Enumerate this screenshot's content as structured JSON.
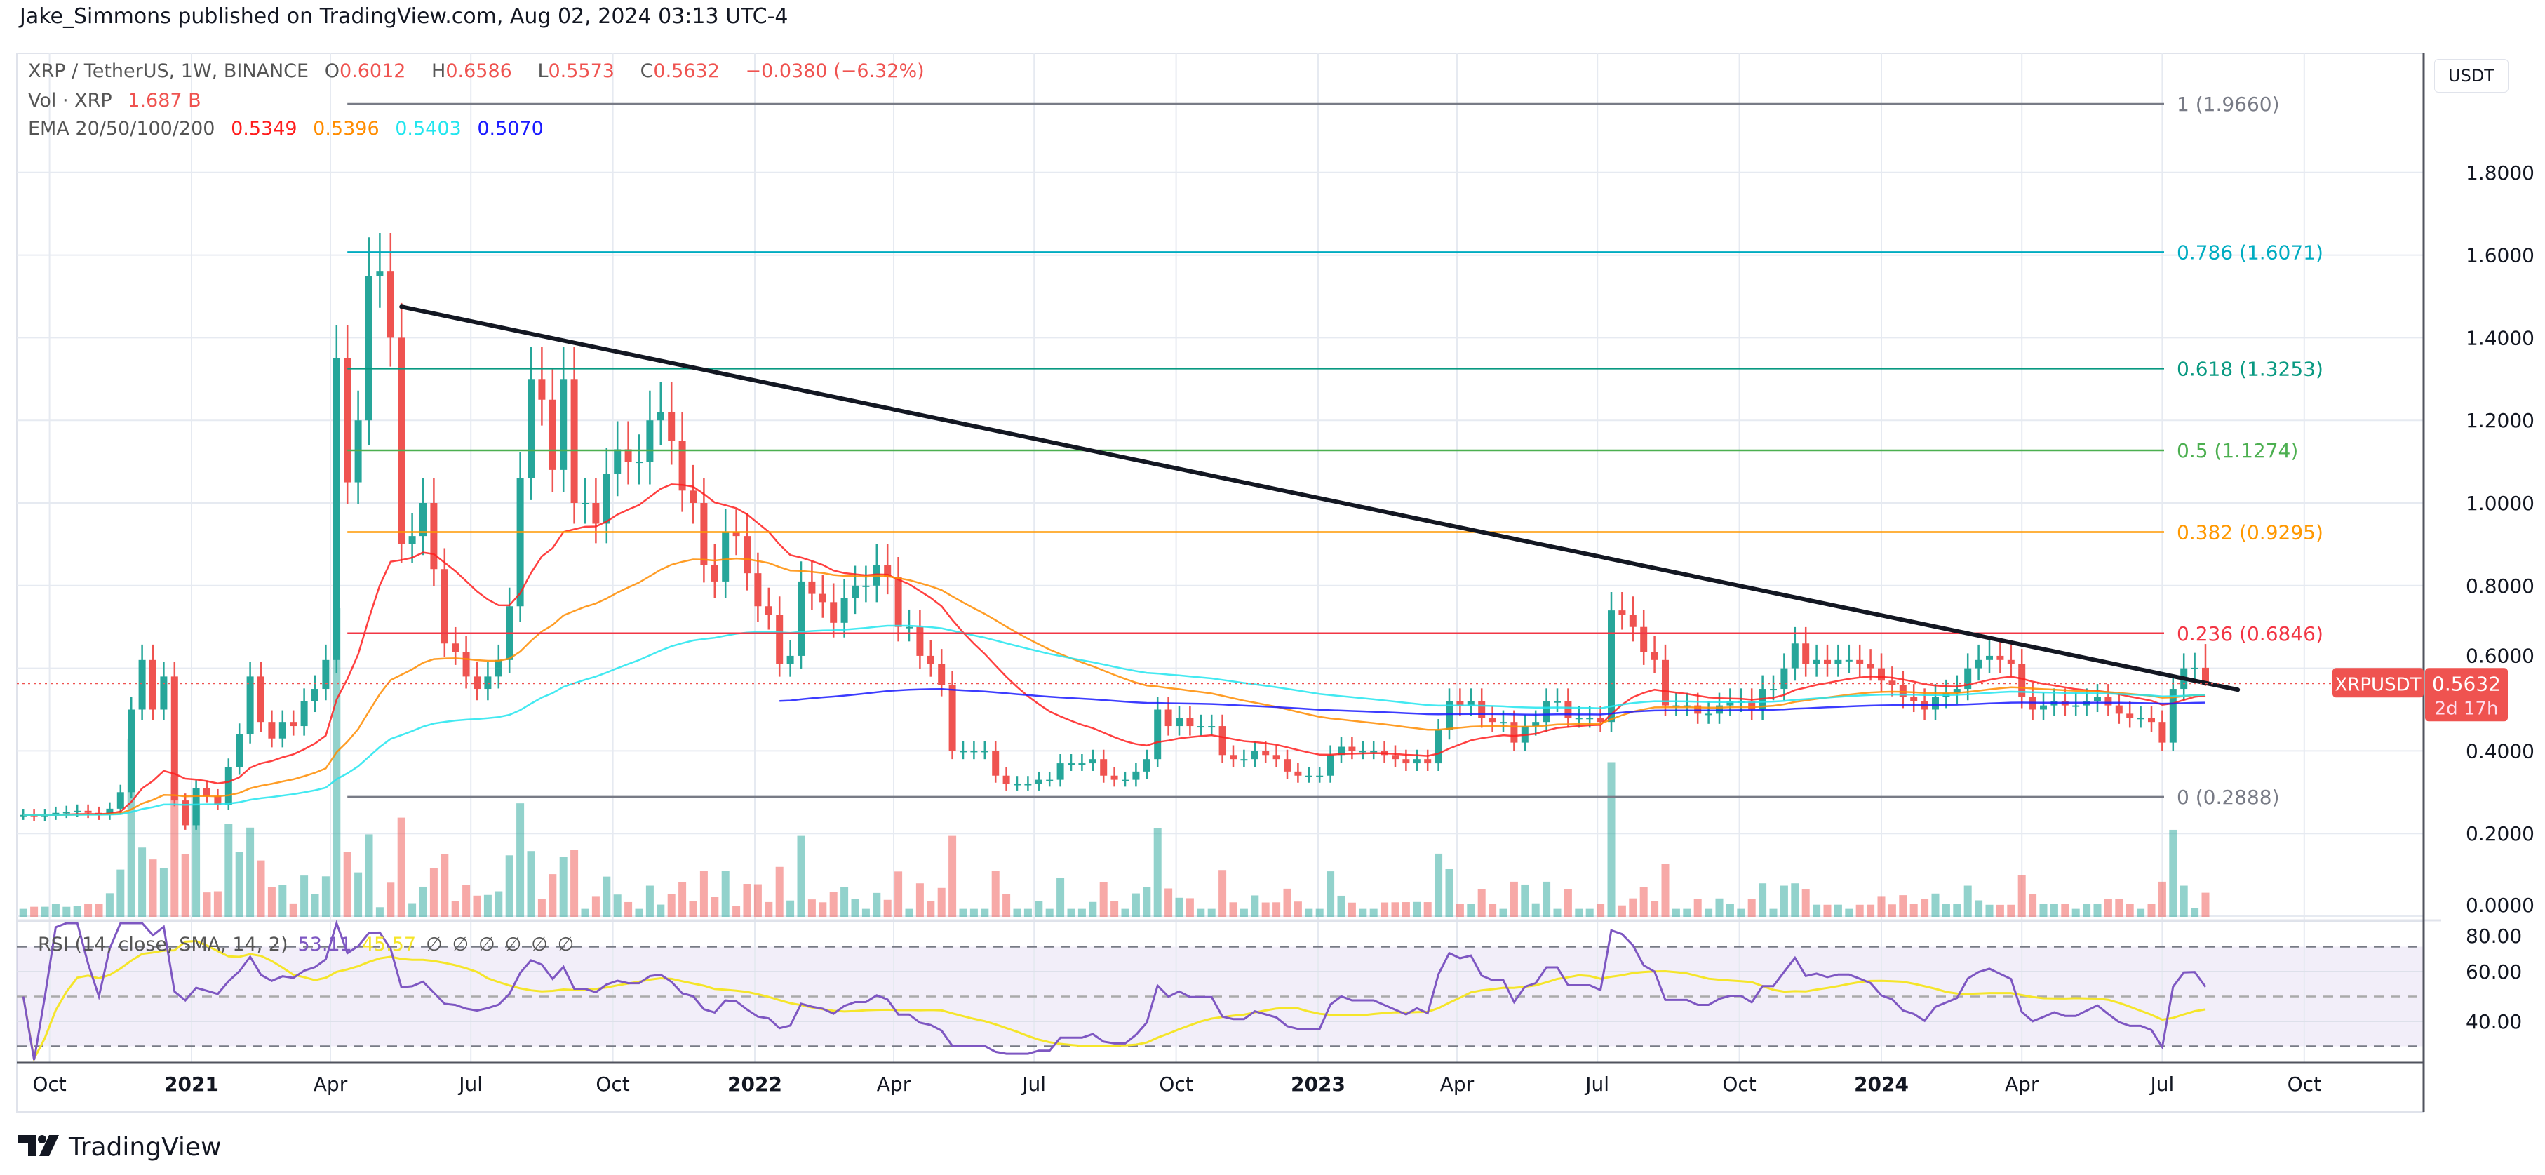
{
  "header": {
    "publisher_line": "Jake_Simmons published on TradingView.com, Aug 02, 2024 03:13 UTC-4"
  },
  "legend": {
    "symbol": "XRP / TetherUS, 1W, BINANCE",
    "open_label": "O",
    "open": "0.6012",
    "high_label": "H",
    "high": "0.6586",
    "low_label": "L",
    "low": "0.5573",
    "close_label": "C",
    "close": "0.5632",
    "change": "−0.0380 (−6.32%)",
    "volume_label": "Vol · XRP",
    "volume": "1.687 B",
    "ema_label": "EMA 20/50/100/200",
    "ema_values": [
      "0.5349",
      "0.5396",
      "0.5403",
      "0.5070"
    ],
    "ema_colors": [
      "#ff1e1e",
      "#ff8c00",
      "#22e5ee",
      "#1a1aff"
    ]
  },
  "price_axis": {
    "currency": "USDT",
    "ticks": [
      "0.0000",
      "0.2000",
      "0.4000",
      "0.6000",
      "0.8000",
      "1.0000",
      "1.2000",
      "1.4000",
      "1.6000",
      "1.8000"
    ],
    "last_price_symbol": "XRPUSDT",
    "last_price": "0.5632",
    "countdown": "2d 17h"
  },
  "rsi": {
    "label": "RSI (14, close, SMA, 14, 2)",
    "value": "53.11",
    "sma_value": "45.57",
    "empty_values": [
      "∅",
      "∅",
      "∅",
      "∅",
      "∅",
      "∅"
    ],
    "ticks": [
      "40.00",
      "60.00",
      "80.00"
    ],
    "colors": {
      "rsi": "#7e57c2",
      "sma": "#f5e52a"
    }
  },
  "time_axis": [
    {
      "label": "Oct",
      "date": "2020-10-01",
      "year": false
    },
    {
      "label": "2021",
      "date": "2021-01-01",
      "year": true
    },
    {
      "label": "Apr",
      "date": "2021-04-01",
      "year": false
    },
    {
      "label": "Jul",
      "date": "2021-07-01",
      "year": false
    },
    {
      "label": "Oct",
      "date": "2021-10-01",
      "year": false
    },
    {
      "label": "2022",
      "date": "2022-01-01",
      "year": true
    },
    {
      "label": "Apr",
      "date": "2022-04-01",
      "year": false
    },
    {
      "label": "Jul",
      "date": "2022-07-01",
      "year": false
    },
    {
      "label": "Oct",
      "date": "2022-10-01",
      "year": false
    },
    {
      "label": "2023",
      "date": "2023-01-01",
      "year": true
    },
    {
      "label": "Apr",
      "date": "2023-04-01",
      "year": false
    },
    {
      "label": "Jul",
      "date": "2023-07-01",
      "year": false
    },
    {
      "label": "Oct",
      "date": "2023-10-01",
      "year": false
    },
    {
      "label": "2024",
      "date": "2024-01-01",
      "year": true
    },
    {
      "label": "Apr",
      "date": "2024-04-01",
      "year": false
    },
    {
      "label": "Jul",
      "date": "2024-07-01",
      "year": false
    },
    {
      "label": "Oct",
      "date": "2024-10-01",
      "year": false
    }
  ],
  "footer": {
    "brand": "TradingView"
  },
  "chart_data": {
    "type": "candlestick",
    "symbol": "XRPUSDT",
    "interval": "1W",
    "last_candle_date": "2024-07-29",
    "ylim": [
      0,
      2.0
    ],
    "grid": true,
    "colors": {
      "up": "#26a69a",
      "down": "#ef5350"
    },
    "closes": [
      0.245,
      0.243,
      0.245,
      0.25,
      0.252,
      0.255,
      0.25,
      0.245,
      0.26,
      0.3,
      0.5,
      0.62,
      0.5,
      0.58,
      0.28,
      0.22,
      0.31,
      0.29,
      0.27,
      0.36,
      0.44,
      0.58,
      0.47,
      0.43,
      0.47,
      0.46,
      0.52,
      0.55,
      0.62,
      1.35,
      1.05,
      1.2,
      1.55,
      1.56,
      1.4,
      0.9,
      0.92,
      1.0,
      0.84,
      0.66,
      0.64,
      0.58,
      0.55,
      0.58,
      0.62,
      0.75,
      1.06,
      1.3,
      1.25,
      1.08,
      1.3,
      1.0,
      1.0,
      0.95,
      1.07,
      1.13,
      1.1,
      1.1,
      1.2,
      1.22,
      1.15,
      1.03,
      1.0,
      0.85,
      0.81,
      0.93,
      0.92,
      0.83,
      0.75,
      0.73,
      0.61,
      0.63,
      0.81,
      0.78,
      0.76,
      0.71,
      0.77,
      0.8,
      0.8,
      0.85,
      0.82,
      0.7,
      0.7,
      0.63,
      0.61,
      0.56,
      0.4,
      0.4,
      0.4,
      0.4,
      0.34,
      0.32,
      0.32,
      0.32,
      0.33,
      0.33,
      0.37,
      0.37,
      0.37,
      0.38,
      0.34,
      0.33,
      0.33,
      0.35,
      0.38,
      0.5,
      0.46,
      0.48,
      0.46,
      0.46,
      0.46,
      0.39,
      0.38,
      0.38,
      0.4,
      0.39,
      0.38,
      0.35,
      0.34,
      0.34,
      0.34,
      0.39,
      0.41,
      0.4,
      0.4,
      0.4,
      0.39,
      0.38,
      0.37,
      0.38,
      0.37,
      0.45,
      0.52,
      0.51,
      0.52,
      0.48,
      0.47,
      0.47,
      0.42,
      0.46,
      0.47,
      0.52,
      0.52,
      0.48,
      0.48,
      0.48,
      0.47,
      0.74,
      0.73,
      0.7,
      0.64,
      0.62,
      0.51,
      0.51,
      0.51,
      0.49,
      0.49,
      0.51,
      0.52,
      0.52,
      0.5,
      0.55,
      0.55,
      0.6,
      0.66,
      0.61,
      0.62,
      0.61,
      0.62,
      0.62,
      0.61,
      0.6,
      0.57,
      0.56,
      0.53,
      0.52,
      0.5,
      0.53,
      0.54,
      0.55,
      0.6,
      0.62,
      0.63,
      0.62,
      0.61,
      0.53,
      0.5,
      0.51,
      0.52,
      0.51,
      0.51,
      0.52,
      0.53,
      0.51,
      0.49,
      0.48,
      0.48,
      0.47,
      0.42,
      0.55,
      0.6,
      0.6012,
      0.5632
    ],
    "last_ohlc": {
      "open": 0.6012,
      "high": 0.6586,
      "low": 0.5573,
      "close": 0.5632
    },
    "fib_levels": [
      {
        "ratio": "1",
        "price": 1.966,
        "label": "1 (1.9660)",
        "color": "#787b86"
      },
      {
        "ratio": "0.786",
        "price": 1.6071,
        "label": "0.786 (1.6071)",
        "color": "#00acc1"
      },
      {
        "ratio": "0.618",
        "price": 1.3253,
        "label": "0.618 (1.3253)",
        "color": "#089981"
      },
      {
        "ratio": "0.5",
        "price": 1.1274,
        "label": "0.5 (1.1274)",
        "color": "#4caf50"
      },
      {
        "ratio": "0.382",
        "price": 0.9295,
        "label": "0.382 (0.9295)",
        "color": "#ff9800"
      },
      {
        "ratio": "0.236",
        "price": 0.6846,
        "label": "0.236 (0.6846)",
        "color": "#f23645"
      },
      {
        "ratio": "0",
        "price": 0.2888,
        "label": "0 (0.2888)",
        "color": "#787b86"
      }
    ],
    "fib_start_date": "2021-04-12",
    "trendline": {
      "start": {
        "date": "2021-05-17",
        "price": 1.475
      },
      "end": {
        "date": "2024-08-19",
        "price": 0.548
      }
    },
    "rsi_ylim": [
      20,
      85
    ],
    "rsi_bands": [
      30,
      50,
      70
    ]
  }
}
